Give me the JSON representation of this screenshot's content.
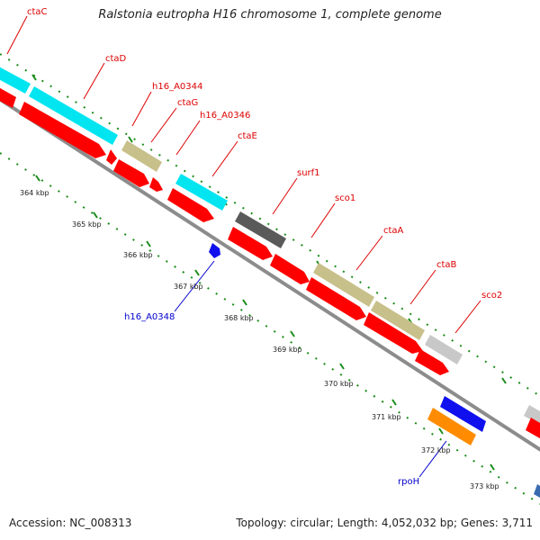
{
  "title": "Ralstonia eutropha H16 chromosome 1, complete genome",
  "footer": {
    "accession": "Accession: NC_008313",
    "summary": "Topology: circular; Length: 4,052,032 bp; Genes: 3,711"
  },
  "colors": {
    "backbone": "#8c8c8c",
    "cds": "#ff0000",
    "rna_highlight": "#00e5f0",
    "khaki": "#c8c08a",
    "dark_gray": "#5a5a5a",
    "light_gray": "#c8c8c8",
    "blue": "#1010ee",
    "orange": "#ff8c00",
    "tick": "#1a8c1a",
    "label_red": "#dd0000",
    "label_blue": "#0000cc"
  },
  "ruler": {
    "ticks": [
      "364 kbp",
      "365 kbp",
      "366 kbp",
      "367 kbp",
      "368 kbp",
      "369 kbp",
      "370 kbp",
      "371 kbp",
      "372 kbp",
      "373 kbp"
    ]
  },
  "gene_labels": [
    {
      "name": "ctaC",
      "color": "red"
    },
    {
      "name": "ctaD",
      "color": "red"
    },
    {
      "name": "h16_A0344",
      "color": "red"
    },
    {
      "name": "ctaG",
      "color": "red"
    },
    {
      "name": "h16_A0346",
      "color": "red"
    },
    {
      "name": "ctaE",
      "color": "red"
    },
    {
      "name": "surf1",
      "color": "red"
    },
    {
      "name": "sco1",
      "color": "red"
    },
    {
      "name": "ctaA",
      "color": "red"
    },
    {
      "name": "ctaB",
      "color": "red"
    },
    {
      "name": "sco2",
      "color": "red"
    },
    {
      "name": "h16_A0348",
      "color": "blue"
    },
    {
      "name": "rpoH",
      "color": "blue"
    }
  ]
}
